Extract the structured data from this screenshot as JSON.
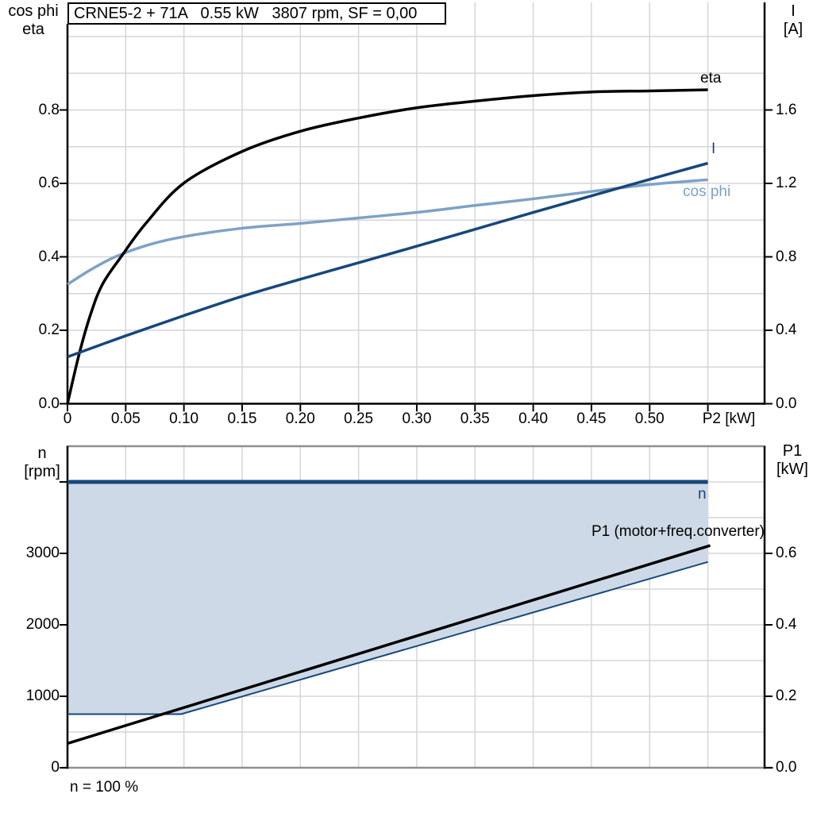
{
  "page": {
    "background": "#ffffff"
  },
  "colors": {
    "navy": "#17477c",
    "steel_blue": "#7da2c6",
    "area_fill": "#cdd9e6",
    "grid": "#d6d6d6",
    "frame_gray": "#8f8f8f",
    "black": "#000000"
  },
  "chart_data": [
    {
      "id": "power-curves",
      "type": "line",
      "title": "CRNE5-2 + 71A   0.55 kW   3807 rpm, SF = 0,00",
      "x_axis": {
        "label": "P2 [kW]",
        "min": 0,
        "max": 0.5987,
        "tick_values": [
          0,
          0.05,
          0.1,
          0.15,
          0.2,
          0.25,
          0.3,
          0.35,
          0.4,
          0.45,
          0.5,
          0.55
        ],
        "tick_labels": [
          "0",
          "0.05",
          "0.10",
          "0.15",
          "0.20",
          "0.25",
          "0.30",
          "0.35",
          "0.40",
          "0.45",
          "0.50",
          ""
        ],
        "grid_min": 0.05,
        "grid_max": 0.55,
        "grid_step": 0.05
      },
      "y_left": {
        "label_lines": [
          "cos phi",
          "eta"
        ],
        "min": 0,
        "max": 1.0346,
        "tick_values": [
          0,
          0.2,
          0.4,
          0.6,
          0.8
        ],
        "tick_labels": [
          "0.0",
          "0.2",
          "0.4",
          "0.6",
          "0.8"
        ],
        "grid_min": 0.1,
        "grid_max": 1.0,
        "grid_step": 0.1
      },
      "y_right": {
        "label_lines": [
          "I",
          "[A]"
        ],
        "min": 0,
        "max": 2.0692,
        "tick_values": [
          0,
          0.4,
          0.8,
          1.2,
          1.6
        ],
        "tick_labels": [
          "0.0",
          "0.4",
          "0.8",
          "1.2",
          "1.6"
        ]
      },
      "series": [
        {
          "name": "cos-phi",
          "label": "cos phi",
          "axis": "left",
          "color": "#7da2c6",
          "width": 3.5,
          "smooth": true,
          "points": [
            [
              0,
              0.325
            ],
            [
              0.02,
              0.365
            ],
            [
              0.041,
              0.4
            ],
            [
              0.07,
              0.433
            ],
            [
              0.1,
              0.455
            ],
            [
              0.15,
              0.478
            ],
            [
              0.2,
              0.491
            ],
            [
              0.25,
              0.506
            ],
            [
              0.3,
              0.521
            ],
            [
              0.35,
              0.54
            ],
            [
              0.4,
              0.558
            ],
            [
              0.45,
              0.578
            ],
            [
              0.5,
              0.597
            ],
            [
              0.55,
              0.61
            ]
          ]
        },
        {
          "name": "eta",
          "label": "eta",
          "axis": "left",
          "color": "#000000",
          "width": 3.5,
          "smooth": true,
          "points": [
            [
              0,
              0
            ],
            [
              0.01,
              0.135
            ],
            [
              0.02,
              0.245
            ],
            [
              0.03,
              0.325
            ],
            [
              0.046,
              0.4
            ],
            [
              0.067,
              0.49
            ],
            [
              0.1,
              0.601
            ],
            [
              0.15,
              0.687
            ],
            [
              0.2,
              0.742
            ],
            [
              0.25,
              0.778
            ],
            [
              0.3,
              0.806
            ],
            [
              0.35,
              0.824
            ],
            [
              0.4,
              0.839
            ],
            [
              0.45,
              0.849
            ],
            [
              0.5,
              0.852
            ],
            [
              0.55,
              0.855
            ]
          ]
        },
        {
          "name": "current",
          "label": "I",
          "axis": "right",
          "color": "#17477c",
          "width": 3.5,
          "smooth": true,
          "points": [
            [
              0,
              0.255
            ],
            [
              0.05,
              0.37
            ],
            [
              0.1,
              0.48
            ],
            [
              0.15,
              0.585
            ],
            [
              0.2,
              0.678
            ],
            [
              0.25,
              0.768
            ],
            [
              0.3,
              0.858
            ],
            [
              0.35,
              0.95
            ],
            [
              0.4,
              1.042
            ],
            [
              0.45,
              1.132
            ],
            [
              0.5,
              1.222
            ],
            [
              0.55,
              1.31
            ]
          ]
        }
      ]
    },
    {
      "id": "speed-and-input-power",
      "type": "line",
      "title": "",
      "x_axis": {
        "label": "",
        "min": 0,
        "max": 0.5987,
        "tick_values": [],
        "tick_labels": [],
        "grid_min": 0.05,
        "grid_max": 0.55,
        "grid_step": 0.05
      },
      "y_left": {
        "label_lines": [
          "n",
          "[rpm]"
        ],
        "min": 0,
        "max": 4500,
        "tick_values": [
          0,
          1000,
          2000,
          3000,
          4000
        ],
        "tick_labels": [
          "0",
          "1000",
          "2000",
          "3000",
          ""
        ]
      },
      "y_right": {
        "label_lines": [
          "P1",
          "[kW]"
        ],
        "min": 0,
        "max": 0.9,
        "tick_values": [
          0,
          0.2,
          0.4,
          0.6
        ],
        "tick_labels": [
          "0.0",
          "0.2",
          "0.4",
          "0.6"
        ],
        "grid_min": 0.1,
        "grid_max": 0.8,
        "grid_step": 0.1
      },
      "series": [
        {
          "name": "speed",
          "label": "n",
          "axis": "left",
          "color": "#17477c",
          "width": 5,
          "smooth": false,
          "points": [
            [
              0,
              4000
            ],
            [
              0.55,
              4000
            ]
          ]
        },
        {
          "name": "speed-min",
          "label": "",
          "axis": "left",
          "color": "#17477c",
          "width": 2,
          "smooth": false,
          "points": [
            [
              0,
              750
            ],
            [
              0.0975,
              750
            ],
            [
              0.55,
              2880
            ]
          ]
        },
        {
          "name": "p1",
          "label": "P1 (motor+freq.converter)",
          "axis": "right",
          "color": "#000000",
          "width": 3.5,
          "smooth": false,
          "points": [
            [
              0,
              0.068
            ],
            [
              0.552,
              0.622
            ]
          ]
        }
      ],
      "area": {
        "upper": "speed",
        "lower": "speed-min",
        "fill": "#cdd9e6"
      },
      "annotation": "n = 100 %"
    }
  ]
}
